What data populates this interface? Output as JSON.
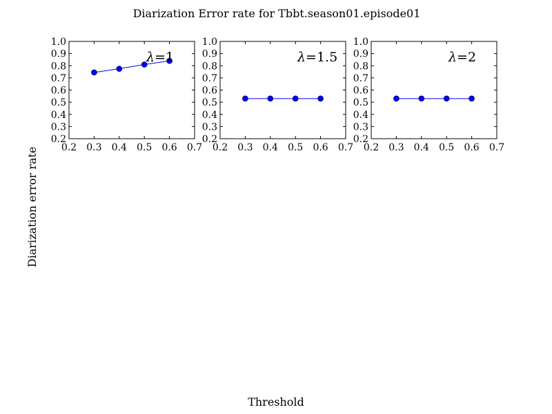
{
  "figure": {
    "title": "Diarization Error rate for Tbbt.season01.episode01",
    "xlabel": "Threshold",
    "ylabel": "Diarization error rate"
  },
  "chart_data": [
    {
      "type": "line",
      "annotation": {
        "symbol": "λ",
        "text": "=1"
      },
      "x": [
        0.3,
        0.4,
        0.5,
        0.6
      ],
      "y": [
        0.745,
        0.775,
        0.81,
        0.84
      ],
      "xlim": [
        0.2,
        0.7
      ],
      "ylim": [
        0.2,
        1.0
      ],
      "xticks": [
        "0.2",
        "0.3",
        "0.4",
        "0.5",
        "0.6",
        "0.7"
      ],
      "yticks": [
        "0.2",
        "0.3",
        "0.4",
        "0.5",
        "0.6",
        "0.7",
        "0.8",
        "0.9",
        "1.0"
      ],
      "grid": false,
      "color": "#0000ff"
    },
    {
      "type": "line",
      "annotation": {
        "symbol": "λ",
        "text": "=1.5"
      },
      "x": [
        0.3,
        0.4,
        0.5,
        0.6
      ],
      "y": [
        0.53,
        0.53,
        0.53,
        0.53
      ],
      "xlim": [
        0.2,
        0.7
      ],
      "ylim": [
        0.2,
        1.0
      ],
      "xticks": [
        "0.2",
        "0.3",
        "0.4",
        "0.5",
        "0.6",
        "0.7"
      ],
      "yticks": [
        "0.2",
        "0.3",
        "0.4",
        "0.5",
        "0.6",
        "0.7",
        "0.8",
        "0.9",
        "1.0"
      ],
      "grid": false,
      "color": "#0000ff"
    },
    {
      "type": "line",
      "annotation": {
        "symbol": "λ",
        "text": "=2"
      },
      "x": [
        0.3,
        0.4,
        0.5,
        0.6
      ],
      "y": [
        0.53,
        0.53,
        0.53,
        0.53
      ],
      "xlim": [
        0.2,
        0.7
      ],
      "ylim": [
        0.2,
        1.0
      ],
      "xticks": [
        "0.2",
        "0.3",
        "0.4",
        "0.5",
        "0.6",
        "0.7"
      ],
      "yticks": [
        "0.2",
        "0.3",
        "0.4",
        "0.5",
        "0.6",
        "0.7",
        "0.8",
        "0.9",
        "1.0"
      ],
      "grid": false,
      "color": "#0000ff"
    }
  ]
}
